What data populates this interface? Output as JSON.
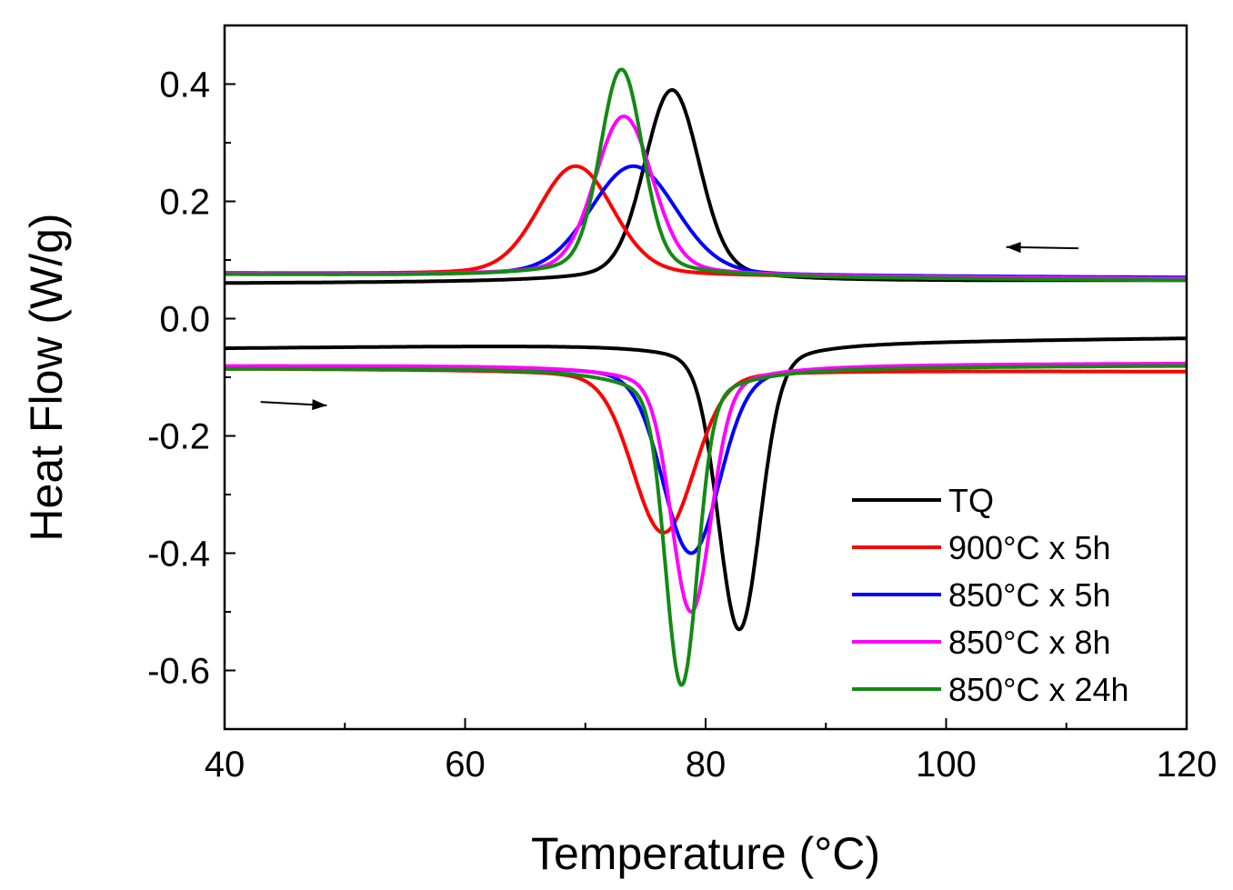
{
  "chart_data": {
    "type": "line",
    "title": "",
    "xlabel": "Temperature (°C)",
    "ylabel": "Heat Flow (W/g)",
    "xlim": [
      40,
      120
    ],
    "ylim": [
      -0.7,
      0.5
    ],
    "x_ticks": [
      40,
      60,
      80,
      100,
      120
    ],
    "x_tick_labels": [
      "40",
      "60",
      "80",
      "100",
      "120"
    ],
    "y_ticks": [
      -0.6,
      -0.4,
      -0.2,
      0.0,
      0.2,
      0.4
    ],
    "y_tick_labels": [
      "-0.6",
      "-0.4",
      "-0.2",
      "0.0",
      "0.2",
      "0.4"
    ],
    "grid": false,
    "legend_position": "bottom-right",
    "annotations": [
      {
        "type": "arrow",
        "direction": "left",
        "branch": "cooling",
        "from": [
          111,
          0.12
        ],
        "to": [
          105,
          0.122
        ]
      },
      {
        "type": "arrow",
        "direction": "right",
        "branch": "heating",
        "from": [
          43,
          -0.142
        ],
        "to": [
          48.5,
          -0.148
        ]
      }
    ],
    "series": [
      {
        "name": "TQ",
        "color": "#000000",
        "cooling": {
          "baseline_left": 0.06,
          "baseline_right": 0.065,
          "peak_x": 77.2,
          "peak_y": 0.39,
          "width": 2.2,
          "tail_width": 16
        },
        "heating": {
          "baseline_left": -0.05,
          "baseline_right": -0.033,
          "peak_x": 82.8,
          "peak_y": -0.53,
          "width": 1.7,
          "tail_width": 12
        }
      },
      {
        "name": "900°C x 5h",
        "color": "#ff0000",
        "cooling": {
          "baseline_left": 0.077,
          "baseline_right": 0.067,
          "peak_x": 69.2,
          "peak_y": 0.26,
          "width": 3.0,
          "tail_width": 18
        },
        "heating": {
          "baseline_left": -0.085,
          "baseline_right": -0.09,
          "peak_x": 76.5,
          "peak_y": -0.365,
          "width": 2.5,
          "tail_width": 14
        }
      },
      {
        "name": "850°C x 5h",
        "color": "#0000ff",
        "cooling": {
          "baseline_left": 0.077,
          "baseline_right": 0.07,
          "peak_x": 74.0,
          "peak_y": 0.26,
          "width": 3.5,
          "tail_width": 16
        },
        "heating": {
          "baseline_left": -0.082,
          "baseline_right": -0.08,
          "peak_x": 78.8,
          "peak_y": -0.4,
          "width": 2.3,
          "tail_width": 14
        }
      },
      {
        "name": "850°C x 8h",
        "color": "#ff00ff",
        "cooling": {
          "baseline_left": 0.076,
          "baseline_right": 0.068,
          "peak_x": 73.2,
          "peak_y": 0.345,
          "width": 2.3,
          "tail_width": 16
        },
        "heating": {
          "baseline_left": -0.08,
          "baseline_right": -0.076,
          "peak_x": 78.8,
          "peak_y": -0.5,
          "width": 1.6,
          "tail_width": 14
        }
      },
      {
        "name": "850°C x 24h",
        "color": "#138a13",
        "cooling": {
          "baseline_left": 0.075,
          "baseline_right": 0.065,
          "peak_x": 73.0,
          "peak_y": 0.425,
          "width": 1.7,
          "tail_width": 14
        },
        "heating": {
          "baseline_left": -0.085,
          "baseline_right": -0.08,
          "peak_x": 78.0,
          "peak_y": -0.625,
          "width": 1.3,
          "tail_width": 13
        }
      }
    ]
  }
}
